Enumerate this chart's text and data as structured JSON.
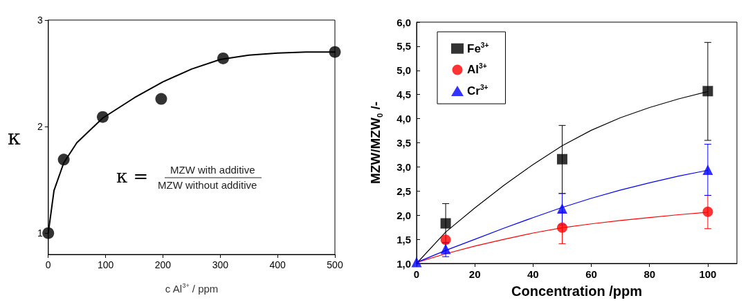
{
  "chart_data": [
    {
      "type": "scatter",
      "xlabel": "c Al$^{3+}$ / ppm",
      "ylabel": "κ",
      "xlim": [
        0,
        500
      ],
      "xticks": [
        0,
        100,
        200,
        300,
        400,
        500
      ],
      "ylim": [
        0.8,
        3
      ],
      "yticks": [
        1,
        2,
        3
      ],
      "grid": false,
      "legend": false,
      "annotations": [
        "κ =",
        "MZW with additive",
        "MZW without additive"
      ],
      "series": [
        {
          "marker": "circle",
          "color": "#000000",
          "x": [
            0,
            27,
            95,
            197,
            305,
            500
          ],
          "values": [
            1,
            1.69,
            2.09,
            2.26,
            2.64,
            2.7
          ]
        },
        {
          "type": "line",
          "marker": "none",
          "line_style": "solid",
          "color": "#000000",
          "x": [
            0,
            10,
            27,
            50,
            95,
            150,
            200,
            250,
            300,
            350,
            400,
            450,
            500
          ],
          "values": [
            1,
            1.4,
            1.66,
            1.85,
            2.08,
            2.27,
            2.42,
            2.54,
            2.63,
            2.67,
            2.69,
            2.7,
            2.7
          ]
        }
      ]
    },
    {
      "type": "scatter",
      "xlabel": "Concentration /ppm",
      "ylabel": "MZW/MZW$_{0}$ /-",
      "xlim": [
        0,
        110
      ],
      "xticks": [
        0,
        20,
        40,
        60,
        80,
        100
      ],
      "ylim": [
        1,
        6
      ],
      "yticks": [
        {
          "value": 1,
          "label": "1,0"
        },
        {
          "value": 1.5,
          "label": "1,5"
        },
        {
          "value": 2,
          "label": "2,0"
        },
        {
          "value": 2.5,
          "label": "2,5"
        },
        {
          "value": 3,
          "label": "3,0"
        },
        {
          "value": 3.5,
          "label": "3,5"
        },
        {
          "value": 4,
          "label": "4,0"
        },
        {
          "value": 4.5,
          "label": "4,5"
        },
        {
          "value": 5,
          "label": "5,0"
        },
        {
          "value": 5.5,
          "label": "5,5"
        },
        {
          "value": 6,
          "label": "6,0"
        }
      ],
      "grid": false,
      "legend": "top left",
      "series": [
        {
          "name": "Fe$^{3+}$",
          "marker": "square",
          "color": "#000000",
          "x": [
            10,
            50,
            100
          ],
          "values": [
            1.83,
            3.16,
            4.57
          ],
          "errors": [
            [
              1.42,
              2.24
            ],
            [
              2.45,
              3.86
            ],
            [
              3.55,
              5.58
            ]
          ]
        },
        {
          "name": "Al$^{3+}$",
          "marker": "circle",
          "color": "#ff0000",
          "x": [
            10,
            50,
            100
          ],
          "values": [
            1.49,
            1.74,
            2.07
          ],
          "errors": [
            null,
            [
              1.41,
              2.06
            ],
            [
              1.72,
              2.41
            ]
          ]
        },
        {
          "name": "Cr$^{3+}$",
          "marker": "triangle",
          "color": "#0000ff",
          "x": [
            0,
            10,
            50,
            100
          ],
          "values": [
            1.03,
            1.3,
            2.14,
            2.94
          ],
          "errors": [
            null,
            [
              1.14,
              1.44
            ],
            [
              1.8,
              2.45
            ],
            [
              2.41,
              3.47
            ]
          ]
        },
        {
          "type": "line",
          "marker": "none",
          "line_style": "solid",
          "color": "#000000",
          "x": [
            0,
            10,
            20,
            30,
            40,
            50,
            60,
            70,
            80,
            90,
            100
          ],
          "values": [
            1,
            1.65,
            2.15,
            2.62,
            3.05,
            3.44,
            3.76,
            4.02,
            4.23,
            4.41,
            4.56
          ]
        },
        {
          "type": "line",
          "marker": "none",
          "line_style": "solid",
          "color": "#ff0000",
          "x": [
            0,
            10,
            20,
            30,
            40,
            50,
            60,
            70,
            80,
            90,
            100
          ],
          "values": [
            1.02,
            1.2,
            1.36,
            1.5,
            1.63,
            1.74,
            1.82,
            1.89,
            1.95,
            2.01,
            2.06
          ]
        },
        {
          "type": "line",
          "marker": "none",
          "line_style": "solid",
          "color": "#0000ff",
          "x": [
            0,
            10,
            20,
            30,
            40,
            50,
            60,
            70,
            80,
            90,
            100
          ],
          "values": [
            1.02,
            1.27,
            1.5,
            1.73,
            1.95,
            2.16,
            2.35,
            2.52,
            2.67,
            2.81,
            2.93
          ]
        }
      ]
    }
  ]
}
